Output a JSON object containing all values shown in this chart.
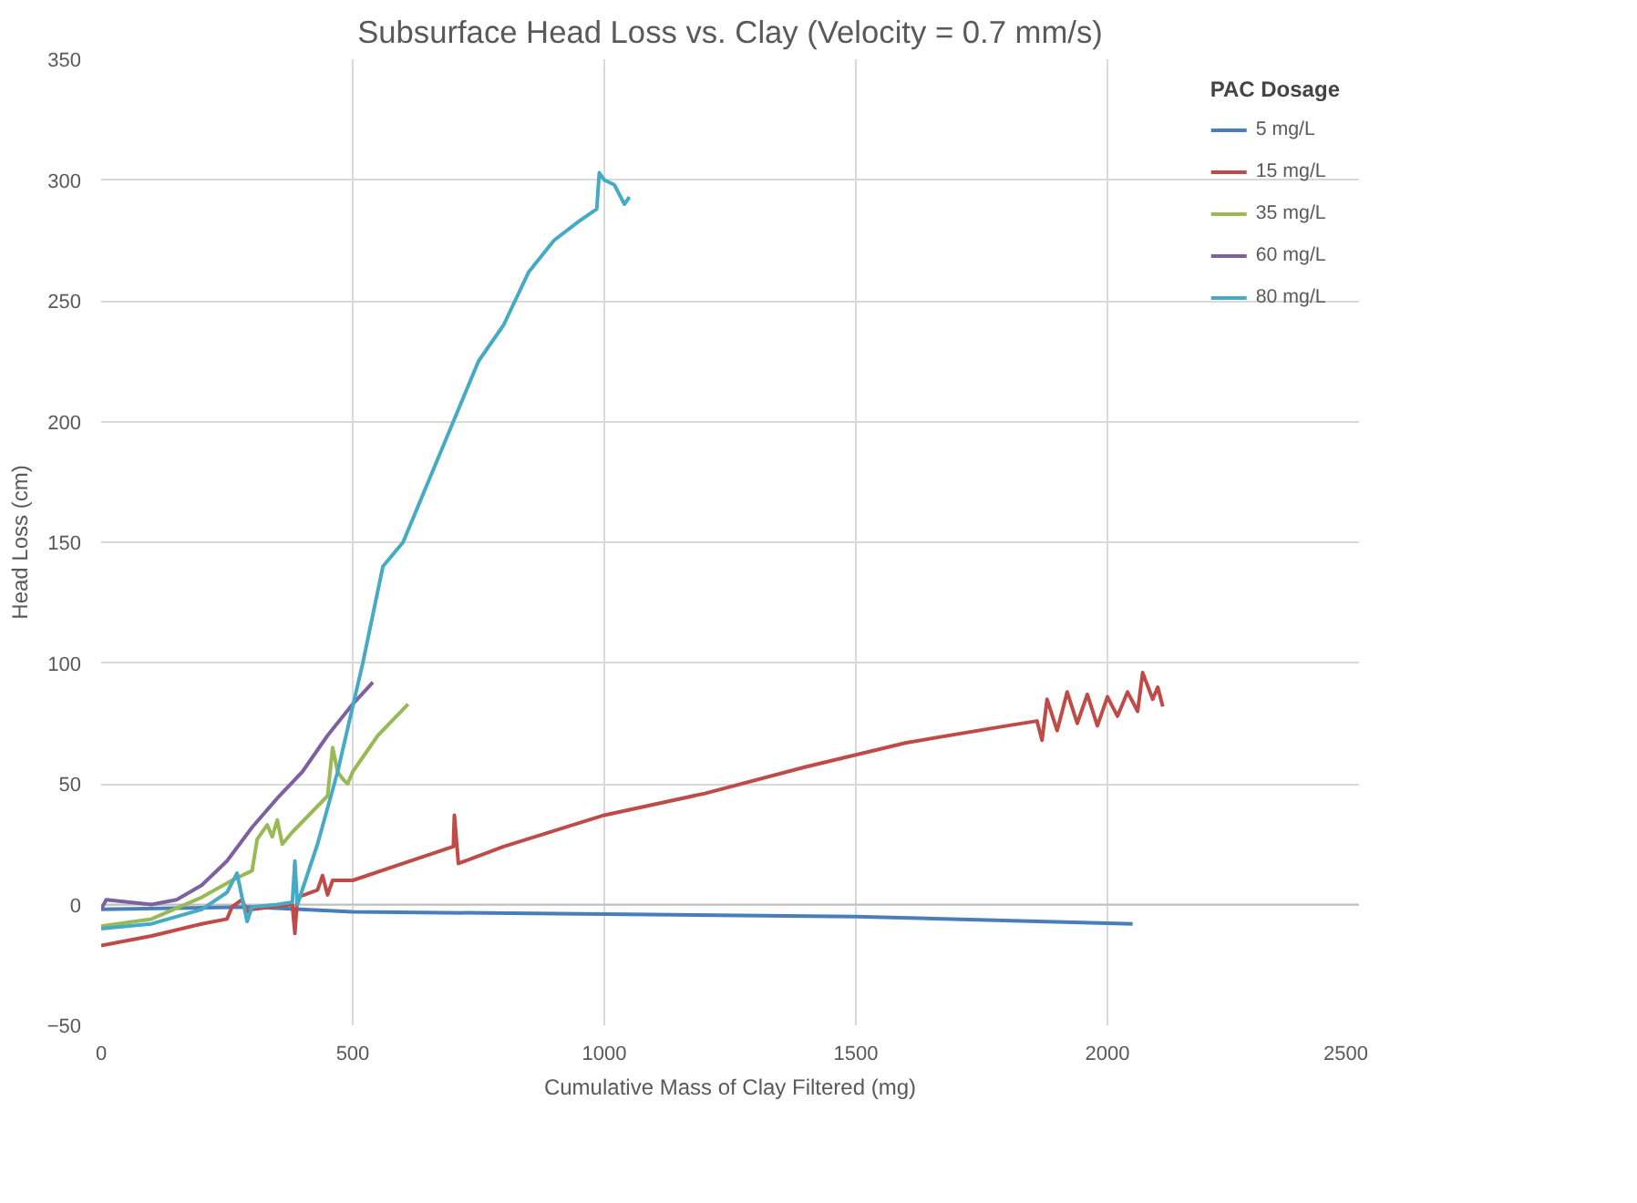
{
  "chart_data": {
    "type": "line",
    "title": "Subsurface Head Loss vs. Clay (Velocity = 0.7 mm/s)",
    "xlabel": "Cumulative Mass of Clay Filtered (mg)",
    "ylabel": "Head Loss (cm)",
    "legend_title": "PAC Dosage",
    "legend": "top right",
    "grid": true,
    "marker": "none",
    "line_style": "solid",
    "xlim": [
      0,
      2500
    ],
    "xticks": [
      0,
      500,
      1000,
      1500,
      2000,
      2500
    ],
    "ylim": [
      -50,
      350
    ],
    "yticks": [
      -50,
      0,
      50,
      100,
      150,
      200,
      250,
      300,
      350
    ],
    "series": [
      {
        "name": "5 mg/L",
        "color": "#4a7ebb",
        "x": [
          0,
          300,
          500,
          1000,
          1500,
          2050
        ],
        "values": [
          -2,
          -1,
          -3,
          -4,
          -5,
          -8
        ]
      },
      {
        "name": "15 mg/L",
        "color": "#be4b48",
        "x": [
          0,
          100,
          200,
          250,
          260,
          280,
          290,
          300,
          380,
          385,
          390,
          430,
          440,
          450,
          460,
          500,
          600,
          700,
          702,
          710,
          800,
          1000,
          1200,
          1400,
          1600,
          1800,
          1860,
          1870,
          1880,
          1900,
          1920,
          1940,
          1960,
          1980,
          2000,
          2020,
          2040,
          2060,
          2070,
          2090,
          2100,
          2110
        ],
        "values": [
          -17,
          -13,
          -8,
          -6,
          -1,
          2,
          -3,
          -2,
          0,
          -12,
          3,
          6,
          12,
          4,
          10,
          10,
          17,
          24,
          37,
          17,
          24,
          37,
          46,
          57,
          67,
          74,
          76,
          68,
          85,
          72,
          88,
          75,
          87,
          74,
          86,
          78,
          88,
          80,
          96,
          85,
          90,
          82
        ]
      },
      {
        "name": "35 mg/L",
        "color": "#98b954",
        "x": [
          0,
          100,
          200,
          260,
          300,
          310,
          330,
          340,
          350,
          360,
          380,
          450,
          460,
          470,
          480,
          490,
          500,
          550,
          610
        ],
        "values": [
          -9,
          -6,
          3,
          10,
          14,
          27,
          33,
          28,
          35,
          25,
          30,
          45,
          65,
          55,
          52,
          50,
          55,
          70,
          83
        ]
      },
      {
        "name": "60 mg/L",
        "color": "#7d60a0",
        "x": [
          0,
          10,
          100,
          150,
          200,
          250,
          300,
          350,
          400,
          450,
          500,
          540
        ],
        "values": [
          -2,
          2,
          0,
          2,
          8,
          18,
          32,
          44,
          55,
          70,
          83,
          92
        ]
      },
      {
        "name": "80 mg/L",
        "color": "#46aac5",
        "x": [
          0,
          100,
          200,
          250,
          270,
          290,
          300,
          350,
          380,
          385,
          390,
          430,
          470,
          520,
          560,
          600,
          650,
          700,
          750,
          800,
          850,
          900,
          950,
          985,
          990,
          1000,
          1020,
          1040,
          1050
        ],
        "values": [
          -10,
          -8,
          -2,
          5,
          13,
          -7,
          -1,
          0,
          1,
          18,
          0,
          25,
          55,
          100,
          140,
          150,
          175,
          200,
          225,
          240,
          262,
          275,
          283,
          288,
          303,
          300,
          298,
          290,
          293
        ]
      }
    ]
  }
}
